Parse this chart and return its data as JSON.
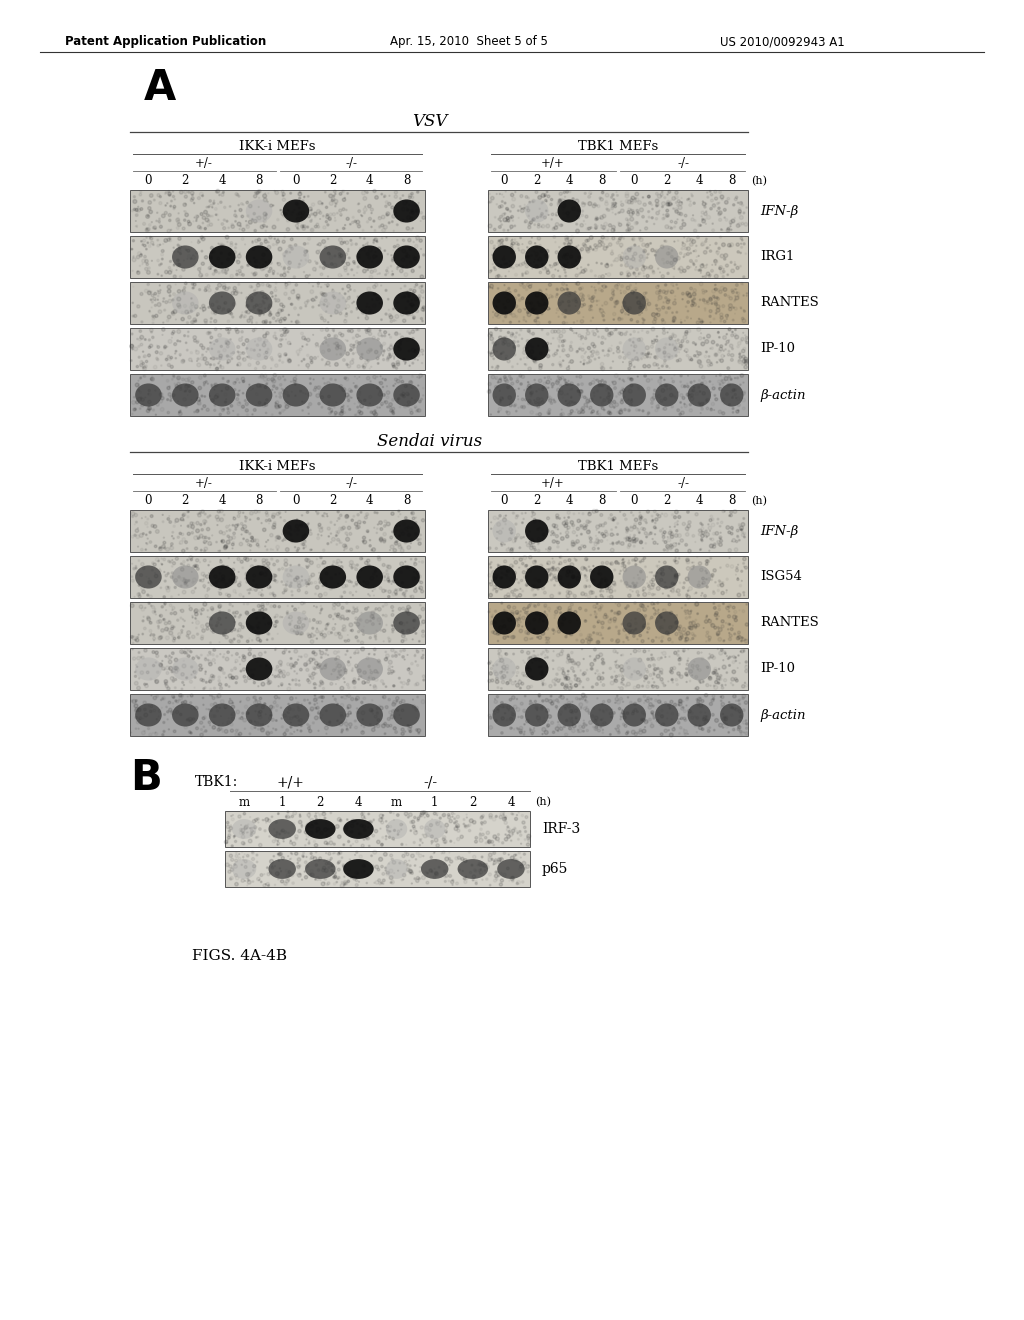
{
  "header_left": "Patent Application Publication",
  "header_middle": "Apr. 15, 2010  Sheet 5 of 5",
  "header_right": "US 2010/0092943 A1",
  "label_A": "A",
  "label_B": "B",
  "vsv_title": "VSV",
  "sendai_title": "Sendai virus",
  "figs_label": "FIGS. 4A-4B",
  "ikki_label": "IKK-i MEFs",
  "tbk1_label_vsv": "TBK1 MEFs",
  "plus_minus_left": "+/-",
  "minus_minus_left": "-/-",
  "plus_plus_right": "+/+",
  "minus_minus_right": "-/-",
  "time_labels": [
    "0",
    "2",
    "4",
    "8",
    "0",
    "2",
    "4",
    "8"
  ],
  "time_label_h": "(h)",
  "vsv_genes": [
    "IFN-β",
    "IRG1",
    "RANTES",
    "IP-10",
    "β-actin"
  ],
  "sendai_genes": [
    "IFN-β",
    "ISG54",
    "RANTES",
    "IP-10",
    "β-actin"
  ],
  "tbk1_label": "TBK1:",
  "tbk1_genotypes": "+/+",
  "tbk1_genotypes2": "-/-",
  "panel_b_time": [
    "m",
    "1",
    "2",
    "4",
    "m",
    "1",
    "2",
    "4"
  ],
  "panel_b_h": "(h)",
  "panel_b_genes": [
    "IRF-3",
    "p65"
  ],
  "bg_color": "#ffffff",
  "text_color": "#000000"
}
